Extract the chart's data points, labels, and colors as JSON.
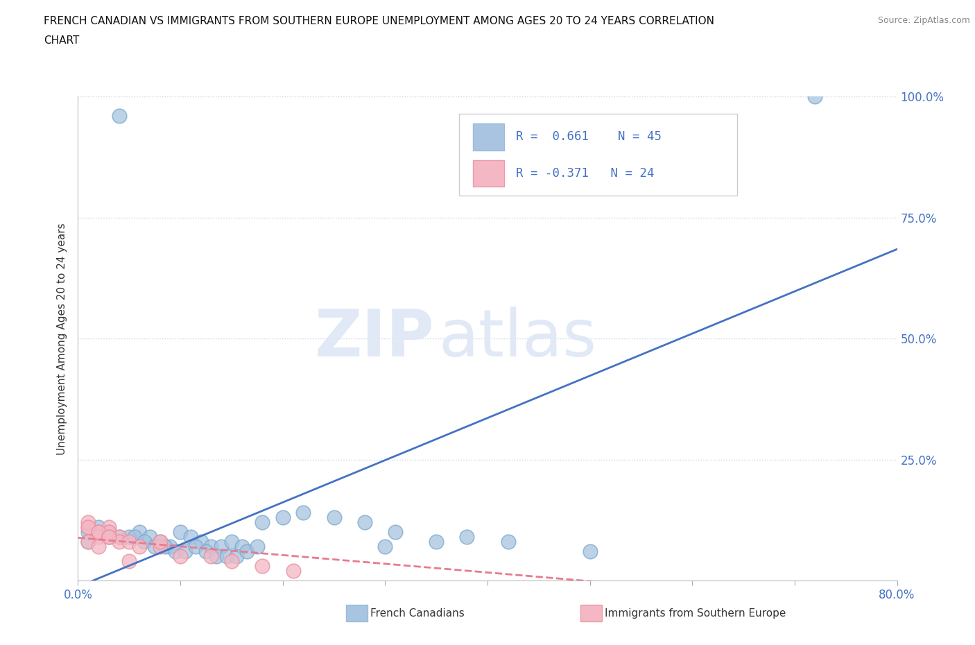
{
  "title_line1": "FRENCH CANADIAN VS IMMIGRANTS FROM SOUTHERN EUROPE UNEMPLOYMENT AMONG AGES 20 TO 24 YEARS CORRELATION",
  "title_line2": "CHART",
  "source_text": "Source: ZipAtlas.com",
  "ylabel": "Unemployment Among Ages 20 to 24 years",
  "xlim": [
    0,
    0.8
  ],
  "ylim": [
    0,
    1.0
  ],
  "blue_R": 0.661,
  "blue_N": 45,
  "pink_R": -0.371,
  "pink_N": 24,
  "blue_color": "#a8c4e0",
  "pink_color": "#f4b8c4",
  "blue_edge_color": "#7aaace",
  "pink_edge_color": "#e890a0",
  "trend_blue_color": "#4472c4",
  "trend_pink_color": "#e87a8f",
  "legend_label_blue": "French Canadians",
  "legend_label_pink": "Immigrants from Southern Europe",
  "watermark_zip": "ZIP",
  "watermark_atlas": "atlas",
  "blue_scatter_x": [
    0.04,
    0.01,
    0.02,
    0.01,
    0.02,
    0.03,
    0.04,
    0.06,
    0.05,
    0.07,
    0.08,
    0.09,
    0.1,
    0.11,
    0.12,
    0.13,
    0.14,
    0.15,
    0.16,
    0.03,
    0.055,
    0.065,
    0.075,
    0.085,
    0.095,
    0.105,
    0.115,
    0.125,
    0.135,
    0.145,
    0.155,
    0.165,
    0.175,
    0.18,
    0.2,
    0.22,
    0.25,
    0.28,
    0.31,
    0.35,
    0.38,
    0.42,
    0.72,
    0.3,
    0.5
  ],
  "blue_scatter_y": [
    0.96,
    0.1,
    0.1,
    0.08,
    0.11,
    0.1,
    0.09,
    0.1,
    0.09,
    0.09,
    0.08,
    0.07,
    0.1,
    0.09,
    0.08,
    0.07,
    0.07,
    0.08,
    0.07,
    0.09,
    0.09,
    0.08,
    0.07,
    0.07,
    0.06,
    0.06,
    0.07,
    0.06,
    0.05,
    0.05,
    0.05,
    0.06,
    0.07,
    0.12,
    0.13,
    0.14,
    0.13,
    0.12,
    0.1,
    0.08,
    0.09,
    0.08,
    1.0,
    0.07,
    0.06
  ],
  "pink_scatter_x": [
    0.01,
    0.02,
    0.03,
    0.01,
    0.02,
    0.03,
    0.04,
    0.01,
    0.02,
    0.03,
    0.04,
    0.05,
    0.01,
    0.02,
    0.03,
    0.06,
    0.08,
    0.1,
    0.13,
    0.15,
    0.18,
    0.21,
    0.08,
    0.05
  ],
  "pink_scatter_y": [
    0.11,
    0.1,
    0.11,
    0.12,
    0.09,
    0.1,
    0.09,
    0.11,
    0.1,
    0.09,
    0.08,
    0.08,
    0.08,
    0.07,
    0.09,
    0.07,
    0.07,
    0.05,
    0.05,
    0.04,
    0.03,
    0.02,
    0.08,
    0.04
  ],
  "background_color": "#ffffff",
  "grid_color": "#c8d4e8",
  "tick_color": "#4472c4",
  "right_ytick_color": "#4472c4"
}
